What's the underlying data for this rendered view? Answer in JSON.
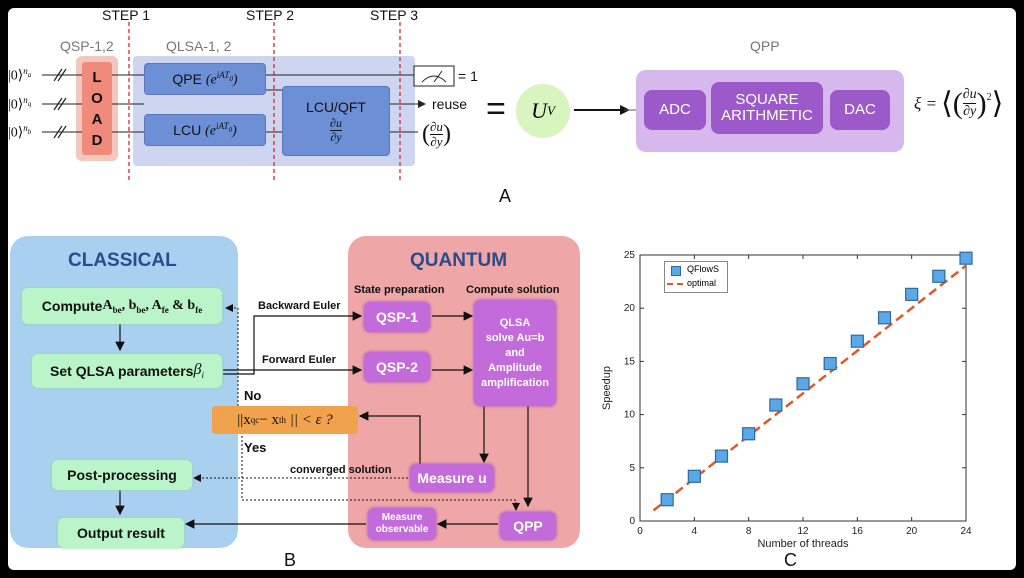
{
  "panelA": {
    "step1": "STEP 1",
    "step2": "STEP 2",
    "step3": "STEP 3",
    "qsp_group": "QSP-1,2",
    "qlsa_group": "QLSA-1, 2",
    "qpp_group": "QPP",
    "load_letters": [
      "L",
      "O",
      "A",
      "D"
    ],
    "qpe": "QPE",
    "lcu": "LCU",
    "exp_term": "(e",
    "exp_sup": "iAT",
    "exp_sub": "0",
    "exp_close": ")",
    "lcu_qft": "LCU/QFT",
    "deriv_num": "∂u",
    "deriv_den": "∂y",
    "ket_a": "|0⟩",
    "ket_a_sup": "n",
    "ket_a_subsup": "a",
    "ket_q_sup": "n",
    "ket_q_subsup": "q",
    "ket_b_sup": "n",
    "ket_b_subsup": "b",
    "meter_value": "= 1",
    "reuse": "reuse",
    "equals": "=",
    "uv": "U",
    "uv_sub": "V",
    "adc": "ADC",
    "square_line1": "SQUARE",
    "square_line2": "ARITHMETIC",
    "dac": "DAC",
    "xi": "ξ =",
    "label": "A"
  },
  "panelB": {
    "classical": "CLASSICAL",
    "quantum": "QUANTUM",
    "compute_prefix": "Compute ",
    "compute_math": "A",
    "compute_a_sub": "be",
    "compute_b": "b",
    "compute_b_sub": "be",
    "compute_afe": "A",
    "compute_afe_sub": "fe",
    "compute_amp": " & ",
    "compute_bfe": "b",
    "compute_bfe_sub": "fe",
    "set_qlsa": "Set QLSA parameters ",
    "beta": "β",
    "beta_sub": "i",
    "backward_euler": "Backward Euler",
    "forward_euler": "Forward Euler",
    "state_prep": "State preparation",
    "compute_solution": "Compute solution",
    "qsp1": "QSP-1",
    "qsp2": "QSP-2",
    "qlsa_lines": [
      "QLSA",
      "solve Au=b",
      "and",
      "Amplitude",
      "amplification"
    ],
    "no": "No",
    "yes": "Yes",
    "condition": "||x",
    "condition_qc": "qc",
    "condition_mid": " − x",
    "condition_th": "th",
    "condition_end": "|| < ε ?",
    "post_processing": "Post-processing",
    "converged": "converged solution",
    "measure_u": "Measure u",
    "output_result": "Output result",
    "measure_obs_line1": "Measure",
    "measure_obs_line2": "observable",
    "qpp": "QPP",
    "label": "B"
  },
  "panelC": {
    "label": "C",
    "chart_data": {
      "type": "scatter",
      "xlabel": "Number of threads",
      "ylabel": "Speedup",
      "xlim": [
        0,
        24
      ],
      "ylim": [
        0,
        25
      ],
      "xticks": [
        0,
        4,
        8,
        12,
        16,
        20,
        24
      ],
      "yticks": [
        0,
        5,
        10,
        15,
        20,
        25
      ],
      "legend_position": "top-left",
      "series": [
        {
          "name": "QFlowS",
          "kind": "marker",
          "color": "#5aa9e6",
          "x": [
            2,
            4,
            6,
            8,
            10,
            12,
            14,
            16,
            18,
            20,
            22,
            24
          ],
          "y": [
            2.0,
            4.2,
            6.1,
            8.2,
            10.9,
            12.9,
            14.8,
            16.9,
            19.1,
            21.3,
            23.0,
            24.7
          ]
        },
        {
          "name": "optimal",
          "kind": "line",
          "color": "#e0582a",
          "x": [
            1,
            24
          ],
          "y": [
            1,
            24
          ]
        }
      ]
    }
  },
  "colors": {
    "step_line": "#d9383a",
    "load_fill": "#f2a89b",
    "qlsa_bg": "#cdd5f0",
    "box_blue": "#6c8fd6",
    "qpp_bg": "#d7b8ec",
    "uv_fill": "#d8f5c0",
    "classical_bg": "#a9d1ef",
    "quantum_bg": "#eea6a6",
    "decision_fill": "#f0a24c"
  }
}
